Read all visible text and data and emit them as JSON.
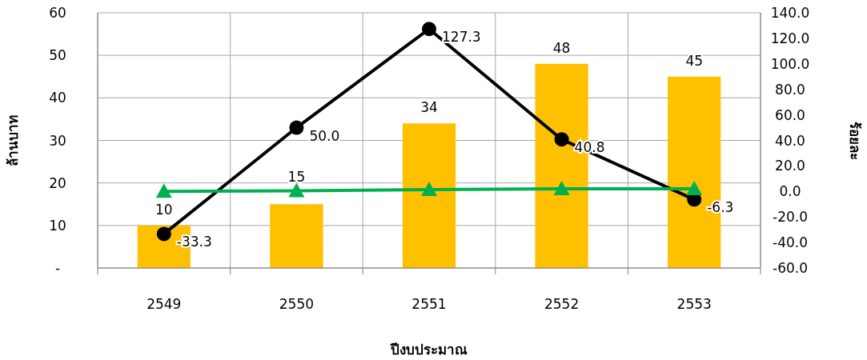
{
  "chart_data": {
    "type": "bar",
    "xlabel": "ปีงบประมาณ",
    "ylabel": "ล้านบาท",
    "y2label": "ร้อยละ",
    "categories": [
      "2549",
      "2550",
      "2551",
      "2552",
      "2553"
    ],
    "series": [
      {
        "color": "#ffc000",
        "values": [
          10,
          15,
          34,
          48,
          45
        ],
        "value_labels": [
          "10",
          "15",
          "34",
          "48",
          "45"
        ]
      },
      {
        "type": "line",
        "axis": "y2",
        "color": "#000000",
        "marker": "circle",
        "values": [
          -33.3,
          50.0,
          127.3,
          40.8,
          -6.3
        ],
        "value_labels": [
          "-33.3",
          "50.0",
          "127.3",
          "40.8",
          "-6.3"
        ]
      },
      {
        "type": "line",
        "axis": "y2",
        "color": "#00b050",
        "marker": "triangle",
        "values": [
          0,
          0.5,
          1.5,
          2,
          2
        ]
      }
    ],
    "ylim": [
      0,
      60
    ],
    "yticks": [
      {
        "value": 0,
        "label": "-"
      },
      10,
      20,
      30,
      40,
      50,
      60
    ],
    "y2lim": [
      -60,
      140
    ],
    "y2ticks": [
      {
        "value": -60,
        "label": "-60.0"
      },
      {
        "value": -40,
        "label": "-40.0"
      },
      {
        "value": -20,
        "label": "-20.0"
      },
      {
        "value": 0,
        "label": "0.0"
      },
      {
        "value": 20,
        "label": "20.0"
      },
      {
        "value": 40,
        "label": "40.0"
      },
      {
        "value": 60,
        "label": "60.0"
      },
      {
        "value": 80,
        "label": "80.0"
      },
      {
        "value": 100,
        "label": "100.0"
      },
      {
        "value": 120,
        "label": "120.0"
      },
      {
        "value": 140,
        "label": "140.0"
      }
    ],
    "grid": true
  }
}
